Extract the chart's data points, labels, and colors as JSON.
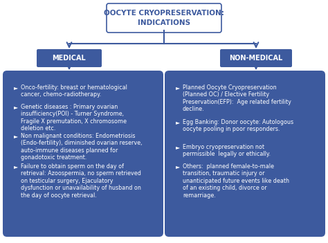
{
  "title_line1": "OOCYTE CRYOPRESERVATION:",
  "title_line2": "INDICATIONS",
  "medical_label": "MEDICAL",
  "nonmedical_label": "NON-MEDICAL",
  "box_color": "#3D5A9E",
  "bg_color": "#FFFFFF",
  "text_color": "#FFFFFF",
  "arrow_color": "#3D5A9E",
  "title_color": "#3D5A9E",
  "medical_bullets": [
    "Onco-fertility: breast or hematological\ncancer, chemo-radiotherapy.",
    "Genetic diseases : Primary ovarian\ninsufficiency(POI) - Turner Syndrome,\nFragile X premutation, X chromosome\ndeletion etc.",
    "Non malignant conditions: Endometriosis\n(Endo-fertility), diminished ovarian reserve,\nauto-immune diseases planned for\ngonadotoxic treatment.",
    "Failure to obtain sperm on the day of\nretrieval: Azoospermia, no sperm retrieved\non testicular surgery, Ejaculatory\ndysfunction or unavailability of husband on\nthe day of oocyte retrieval."
  ],
  "nonmedical_bullets": [
    "Planned Oocyte Cryopreservation\n(Planned OC) / Elective Fertility\nPreservation(EFP):  Age related fertility\ndecline.",
    "Egg Banking: Donor oocyte: Autologous\noocyte pooling in poor responders.",
    "Embryo cryopreservation not\npermissible  legally or ethically.",
    "Others:  planned female-to-male\ntransition, traumatic injury or\nunanticipated future events like death\nof an existing child, divorce or\nremarriage."
  ],
  "font_size_title": 7.5,
  "font_size_label": 7.0,
  "font_size_bullet": 5.8,
  "med_bullet_spacings": [
    28,
    42,
    44,
    52
  ],
  "nmed_bullet_spacings": [
    50,
    36,
    28,
    52
  ]
}
